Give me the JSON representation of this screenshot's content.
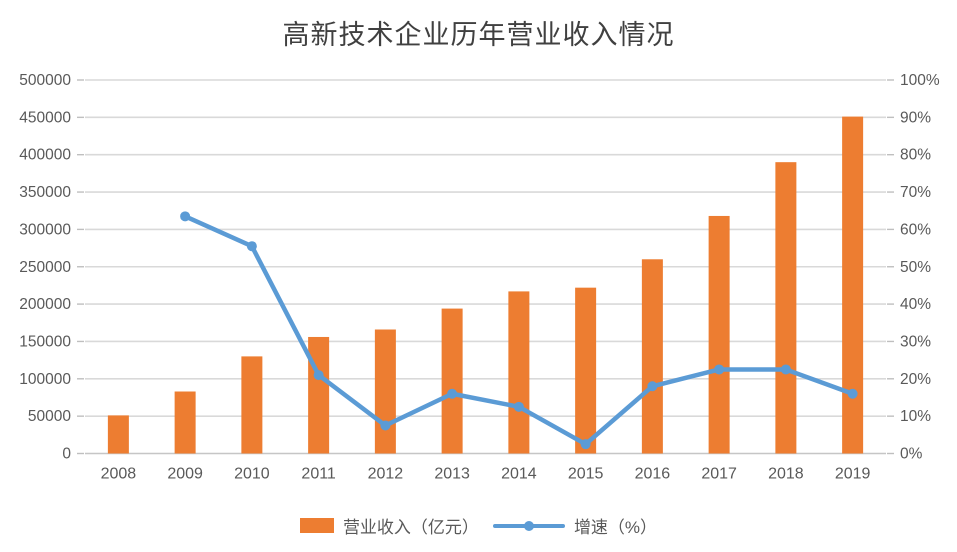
{
  "header": {
    "title": "高新技术企业历年营业收入情况"
  },
  "colors": {
    "bar": "#ED7D31",
    "line": "#5B9BD5",
    "gridline": "#D9D9D9",
    "axis_line": "#C6C6C6",
    "tick_mark": "#BFBFBF",
    "axis_text": "#595959",
    "title_text": "#404040",
    "background": "#FFFFFF"
  },
  "chart_data": {
    "type": "bar",
    "title": "高新技术企业历年营业收入情况",
    "categories": [
      "2008",
      "2009",
      "2010",
      "2011",
      "2012",
      "2013",
      "2014",
      "2015",
      "2016",
      "2017",
      "2018",
      "2019"
    ],
    "series": [
      {
        "name": "营业收入（亿元）",
        "type": "bar",
        "axis": "left",
        "color": "#ED7D31",
        "values": [
          51000,
          83000,
          130000,
          156000,
          166000,
          194000,
          217000,
          222000,
          260000,
          318000,
          390000,
          451000
        ]
      },
      {
        "name": "增速（%）",
        "type": "line",
        "axis": "right",
        "color": "#5B9BD5",
        "values": [
          null,
          63.5,
          55.5,
          21,
          7.5,
          16,
          12.5,
          2.5,
          18,
          22.5,
          22.5,
          16
        ]
      }
    ],
    "y_left": {
      "min": 0,
      "max": 500000,
      "step": 50000,
      "ticks": [
        "0",
        "50000",
        "100000",
        "150000",
        "200000",
        "250000",
        "300000",
        "350000",
        "400000",
        "450000",
        "500000"
      ]
    },
    "y_right": {
      "min": 0,
      "max": 100,
      "step": 10,
      "ticks": [
        "0%",
        "10%",
        "20%",
        "30%",
        "40%",
        "50%",
        "60%",
        "70%",
        "80%",
        "90%",
        "100%"
      ]
    },
    "grid": "horizontal",
    "legend_position": "bottom",
    "xlabel": "",
    "ylabel": ""
  },
  "legend": {
    "items": [
      {
        "label": "营业收入（亿元）",
        "marker": "bar",
        "color": "#ED7D31"
      },
      {
        "label": "增速（%）",
        "marker": "line-dot",
        "color": "#5B9BD5"
      }
    ]
  }
}
